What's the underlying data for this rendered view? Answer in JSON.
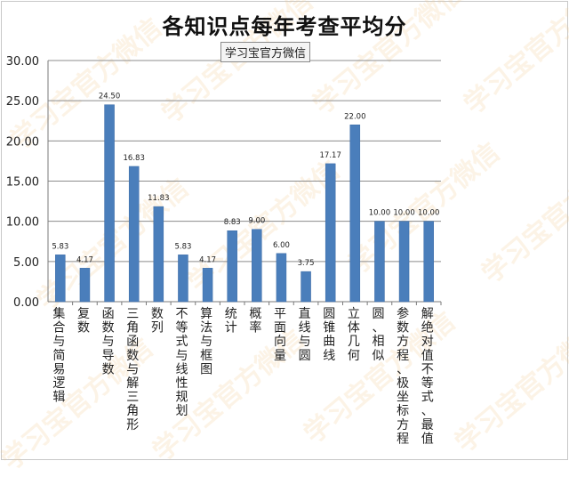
{
  "chart_data": {
    "type": "bar",
    "title": "各知识点每年考查平均分",
    "subtitle": "学习宝官方微信",
    "categories": [
      "集合与简易逻辑",
      "复数",
      "函数与导数",
      "三角函数与解三角形",
      "数列",
      "不等式与线性规划",
      "算法与框图",
      "统计",
      "概率",
      "平面向量",
      "直线与圆",
      "圆锥曲线",
      "立体几何",
      "圆、相似",
      "参数方程、极坐标方程",
      "解绝对值不等式、最值"
    ],
    "values": [
      5.83,
      4.17,
      24.5,
      16.83,
      11.83,
      5.83,
      4.17,
      8.83,
      9.0,
      6.0,
      3.75,
      17.17,
      22.0,
      10.0,
      10.0,
      10.0
    ],
    "value_labels": [
      "5.83",
      "4.17",
      "24.50",
      "16.83",
      "11.83",
      "5.83",
      "4.17",
      "8.83",
      "9.00",
      "6.00",
      "3.75",
      "17.17",
      "22.00",
      "10.00",
      "10.00",
      "10.00"
    ],
    "ylim": [
      0,
      30
    ],
    "yticks": [
      "0.00",
      "5.00",
      "10.00",
      "15.00",
      "20.00",
      "25.00",
      "30.00"
    ],
    "xlabel": "",
    "ylabel": "",
    "grid": true,
    "bar_color": "#4a7ebb"
  },
  "watermark": "学习宝官方微信"
}
